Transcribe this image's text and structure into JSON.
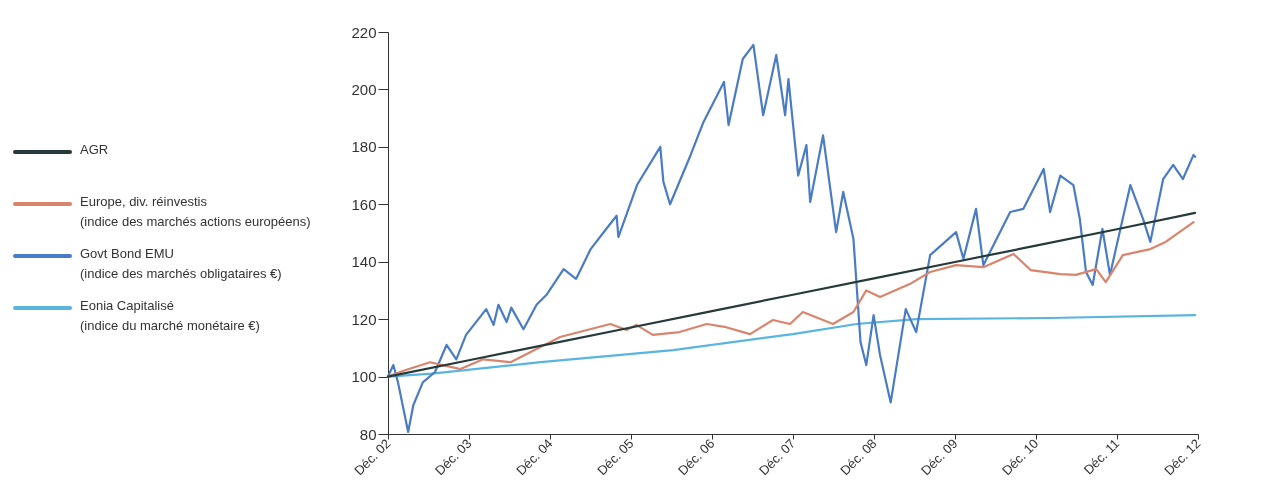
{
  "chart_data": {
    "type": "line",
    "legend": "left",
    "marker": "none",
    "line_style": "solid",
    "grid": false,
    "xlim": [
      "2002-12-15",
      "2012-12-15"
    ],
    "ylim": [
      80,
      220
    ],
    "xticks": [
      {
        "value": "2002-12-15",
        "label": "Déc. 02"
      },
      {
        "value": "2003-12-15",
        "label": "Déc. 03"
      },
      {
        "value": "2004-12-15",
        "label": "Déc. 04"
      },
      {
        "value": "2005-12-15",
        "label": "Déc. 05"
      },
      {
        "value": "2006-12-15",
        "label": "Déc. 06"
      },
      {
        "value": "2007-12-15",
        "label": "Déc. 07"
      },
      {
        "value": "2008-12-15",
        "label": "Déc. 08"
      },
      {
        "value": "2009-12-15",
        "label": "Déc. 09"
      },
      {
        "value": "2010-12-15",
        "label": "Déc. 10"
      },
      {
        "value": "2011-12-15",
        "label": "Déc. 11"
      },
      {
        "value": "2012-12-15",
        "label": "Déc. 12"
      }
    ],
    "yticks": [
      80,
      100,
      120,
      140,
      160,
      180,
      200,
      220
    ],
    "series": [
      {
        "name": "AGR",
        "color": "#263a3a",
        "x": [
          "2002-12-15",
          "2003-12-15",
          "2004-12-15",
          "2005-12-15",
          "2006-12-15",
          "2007-12-15",
          "2008-12-15",
          "2009-12-15",
          "2010-12-15",
          "2011-12-15",
          "2012-12-02"
        ],
        "values": [
          100,
          105.7,
          111.4,
          117.1,
          122.8,
          128.5,
          134.2,
          139.9,
          145.6,
          151.3,
          157
        ]
      },
      {
        "name": "Europe, div. réinvestis\n(indice des marchés actions européens)",
        "color": "#d9846c",
        "x": [
          "2002-12-15",
          "2003-03-05",
          "2003-06-23",
          "2003-11-07",
          "2004-02-17",
          "2004-06-20",
          "2004-09-16",
          "2004-12-15",
          "2005-01-29",
          "2005-06-13",
          "2005-09-13",
          "2005-11-25",
          "2006-01-08",
          "2006-03-23",
          "2006-07-22",
          "2006-11-21",
          "2007-02-17",
          "2007-06-05",
          "2007-09-16",
          "2007-12-02",
          "2008-01-29",
          "2008-06-13",
          "2008-09-13",
          "2008-11-10",
          "2009-01-11",
          "2009-05-25",
          "2009-08-25",
          "2009-12-20",
          "2010-04-22",
          "2010-09-05",
          "2010-11-21",
          "2011-04-04",
          "2011-06-13",
          "2011-09-13",
          "2011-10-26",
          "2012-01-11",
          "2012-05-14",
          "2012-07-22",
          "2012-11-25"
        ],
        "values": [
          100,
          102.3,
          105,
          102.6,
          106,
          105,
          108.5,
          112,
          113.8,
          116.5,
          118.3,
          116.2,
          118,
          114.5,
          115.5,
          118.3,
          117.2,
          114.8,
          119.7,
          118.3,
          122.5,
          118.3,
          122.5,
          130,
          127.7,
          132.2,
          136.4,
          138.8,
          138.1,
          142.7,
          137.1,
          135.7,
          135.4,
          137.4,
          132.9,
          142.3,
          144.4,
          146.9,
          153.8
        ]
      },
      {
        "name": "Govt Bond EMU\n(indice des marchés obligataires €)",
        "color": "#4a7cc4",
        "x": [
          "2002-12-15",
          "2003-01-08",
          "2003-01-29",
          "2003-03-16",
          "2003-04-08",
          "2003-05-21",
          "2003-07-15",
          "2003-09-05",
          "2003-10-19",
          "2003-12-02",
          "2004-03-02",
          "2004-04-04",
          "2004-04-26",
          "2004-06-02",
          "2004-06-23",
          "2004-08-17",
          "2004-10-15",
          "2004-11-28",
          "2005-02-14",
          "2005-04-11",
          "2005-06-16",
          "2005-08-25",
          "2005-10-11",
          "2005-10-19",
          "2006-01-11",
          "2006-04-26",
          "2006-05-10",
          "2006-06-09",
          "2006-09-09",
          "2006-11-07",
          "2007-02-07",
          "2007-02-28",
          "2007-05-03",
          "2007-06-20",
          "2007-08-03",
          "2007-10-01",
          "2007-11-10",
          "2007-11-25",
          "2008-01-08",
          "2008-02-14",
          "2008-03-02",
          "2008-04-29",
          "2008-06-27",
          "2008-07-29",
          "2008-09-13",
          "2008-10-15",
          "2008-11-10",
          "2008-12-13",
          "2009-01-11",
          "2009-02-28",
          "2009-05-07",
          "2009-06-23",
          "2009-08-25",
          "2009-12-20",
          "2010-01-22",
          "2010-03-20",
          "2010-04-22",
          "2010-08-21",
          "2010-10-19",
          "2011-01-19",
          "2011-02-17",
          "2011-04-04",
          "2011-06-02",
          "2011-07-01",
          "2011-07-29",
          "2011-08-28",
          "2011-10-11",
          "2011-11-14",
          "2012-02-14",
          "2012-04-11",
          "2012-05-14",
          "2012-07-11",
          "2012-08-25",
          "2012-10-08",
          "2012-11-25",
          "2012-12-02"
        ],
        "values": [
          100,
          104,
          98,
          80.7,
          90,
          98,
          101.6,
          111,
          106,
          114.5,
          123.5,
          118,
          125,
          119,
          124,
          116.5,
          125,
          128.4,
          137.4,
          134,
          144.4,
          151.4,
          156,
          148.6,
          166.7,
          180,
          167.8,
          160,
          177,
          188.7,
          202.6,
          187.6,
          210.6,
          215.5,
          191,
          212,
          191,
          203.6,
          170,
          180.6,
          160.8,
          184,
          150.3,
          164.3,
          148,
          112,
          104,
          121.4,
          107.5,
          91,
          123.5,
          115.5,
          142.3,
          150.3,
          141,
          158.4,
          138.8,
          157.3,
          158.4,
          172.3,
          157.3,
          170,
          166.7,
          154.9,
          136.4,
          131.9,
          151.4,
          135.4,
          166.7,
          154.9,
          146.9,
          168.8,
          173.7,
          168.8,
          177.2,
          176.5
        ]
      },
      {
        "name": "Eonia Capitalisé\n(indice du marché monétaire €)",
        "color": "#5ab4e0",
        "x": [
          "2002-12-15",
          "2003-07-01",
          "2004-11-03",
          "2006-06-23",
          "2007-12-15",
          "2008-09-27",
          "2009-06-23",
          "2011-02-17",
          "2012-12-02"
        ],
        "values": [
          100,
          101,
          105,
          109.2,
          114.8,
          118.3,
          120,
          120.4,
          121.4
        ]
      }
    ]
  }
}
